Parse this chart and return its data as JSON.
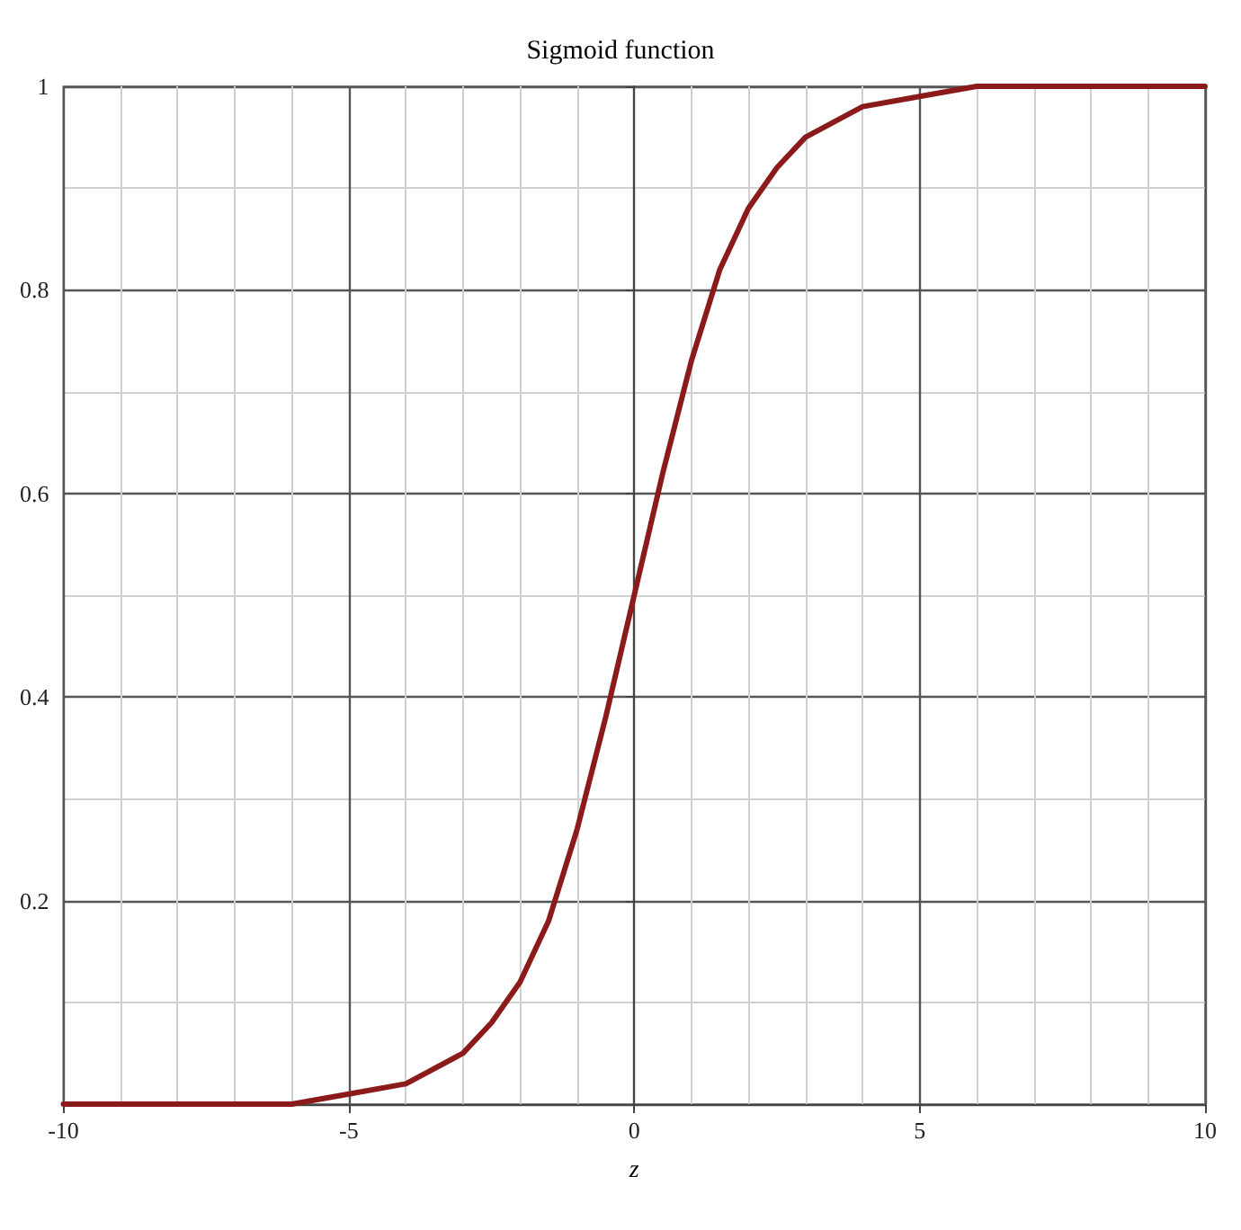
{
  "chart_data": {
    "type": "line",
    "title": "Sigmoid function",
    "xlabel": "z",
    "x": [
      -10,
      -9,
      -8,
      -7,
      -6,
      -5,
      -4,
      -3,
      -2.5,
      -2,
      -1.5,
      -1,
      -0.5,
      0,
      0.5,
      1,
      1.5,
      2,
      2.5,
      3,
      4,
      5,
      6,
      7,
      8,
      9,
      10
    ],
    "series": [
      {
        "color": "#8b1a1a",
        "values": [
          0,
          0,
          0,
          0,
          0,
          0.01,
          0.02,
          0.05,
          0.08,
          0.12,
          0.18,
          0.27,
          0.38,
          0.5,
          0.62,
          0.73,
          0.82,
          0.88,
          0.92,
          0.95,
          0.98,
          0.99,
          1,
          1,
          1,
          1,
          1
        ]
      }
    ],
    "xlim": [
      -10,
      10
    ],
    "xticks": [
      -10,
      -5,
      0,
      5,
      10
    ],
    "ylim": [
      0,
      1
    ],
    "yticks": [
      {
        "value": 0,
        "label": null
      },
      0.2,
      0.4,
      0.6,
      0.8,
      1
    ],
    "grid": true,
    "marker": "none",
    "line_style": "solid"
  }
}
